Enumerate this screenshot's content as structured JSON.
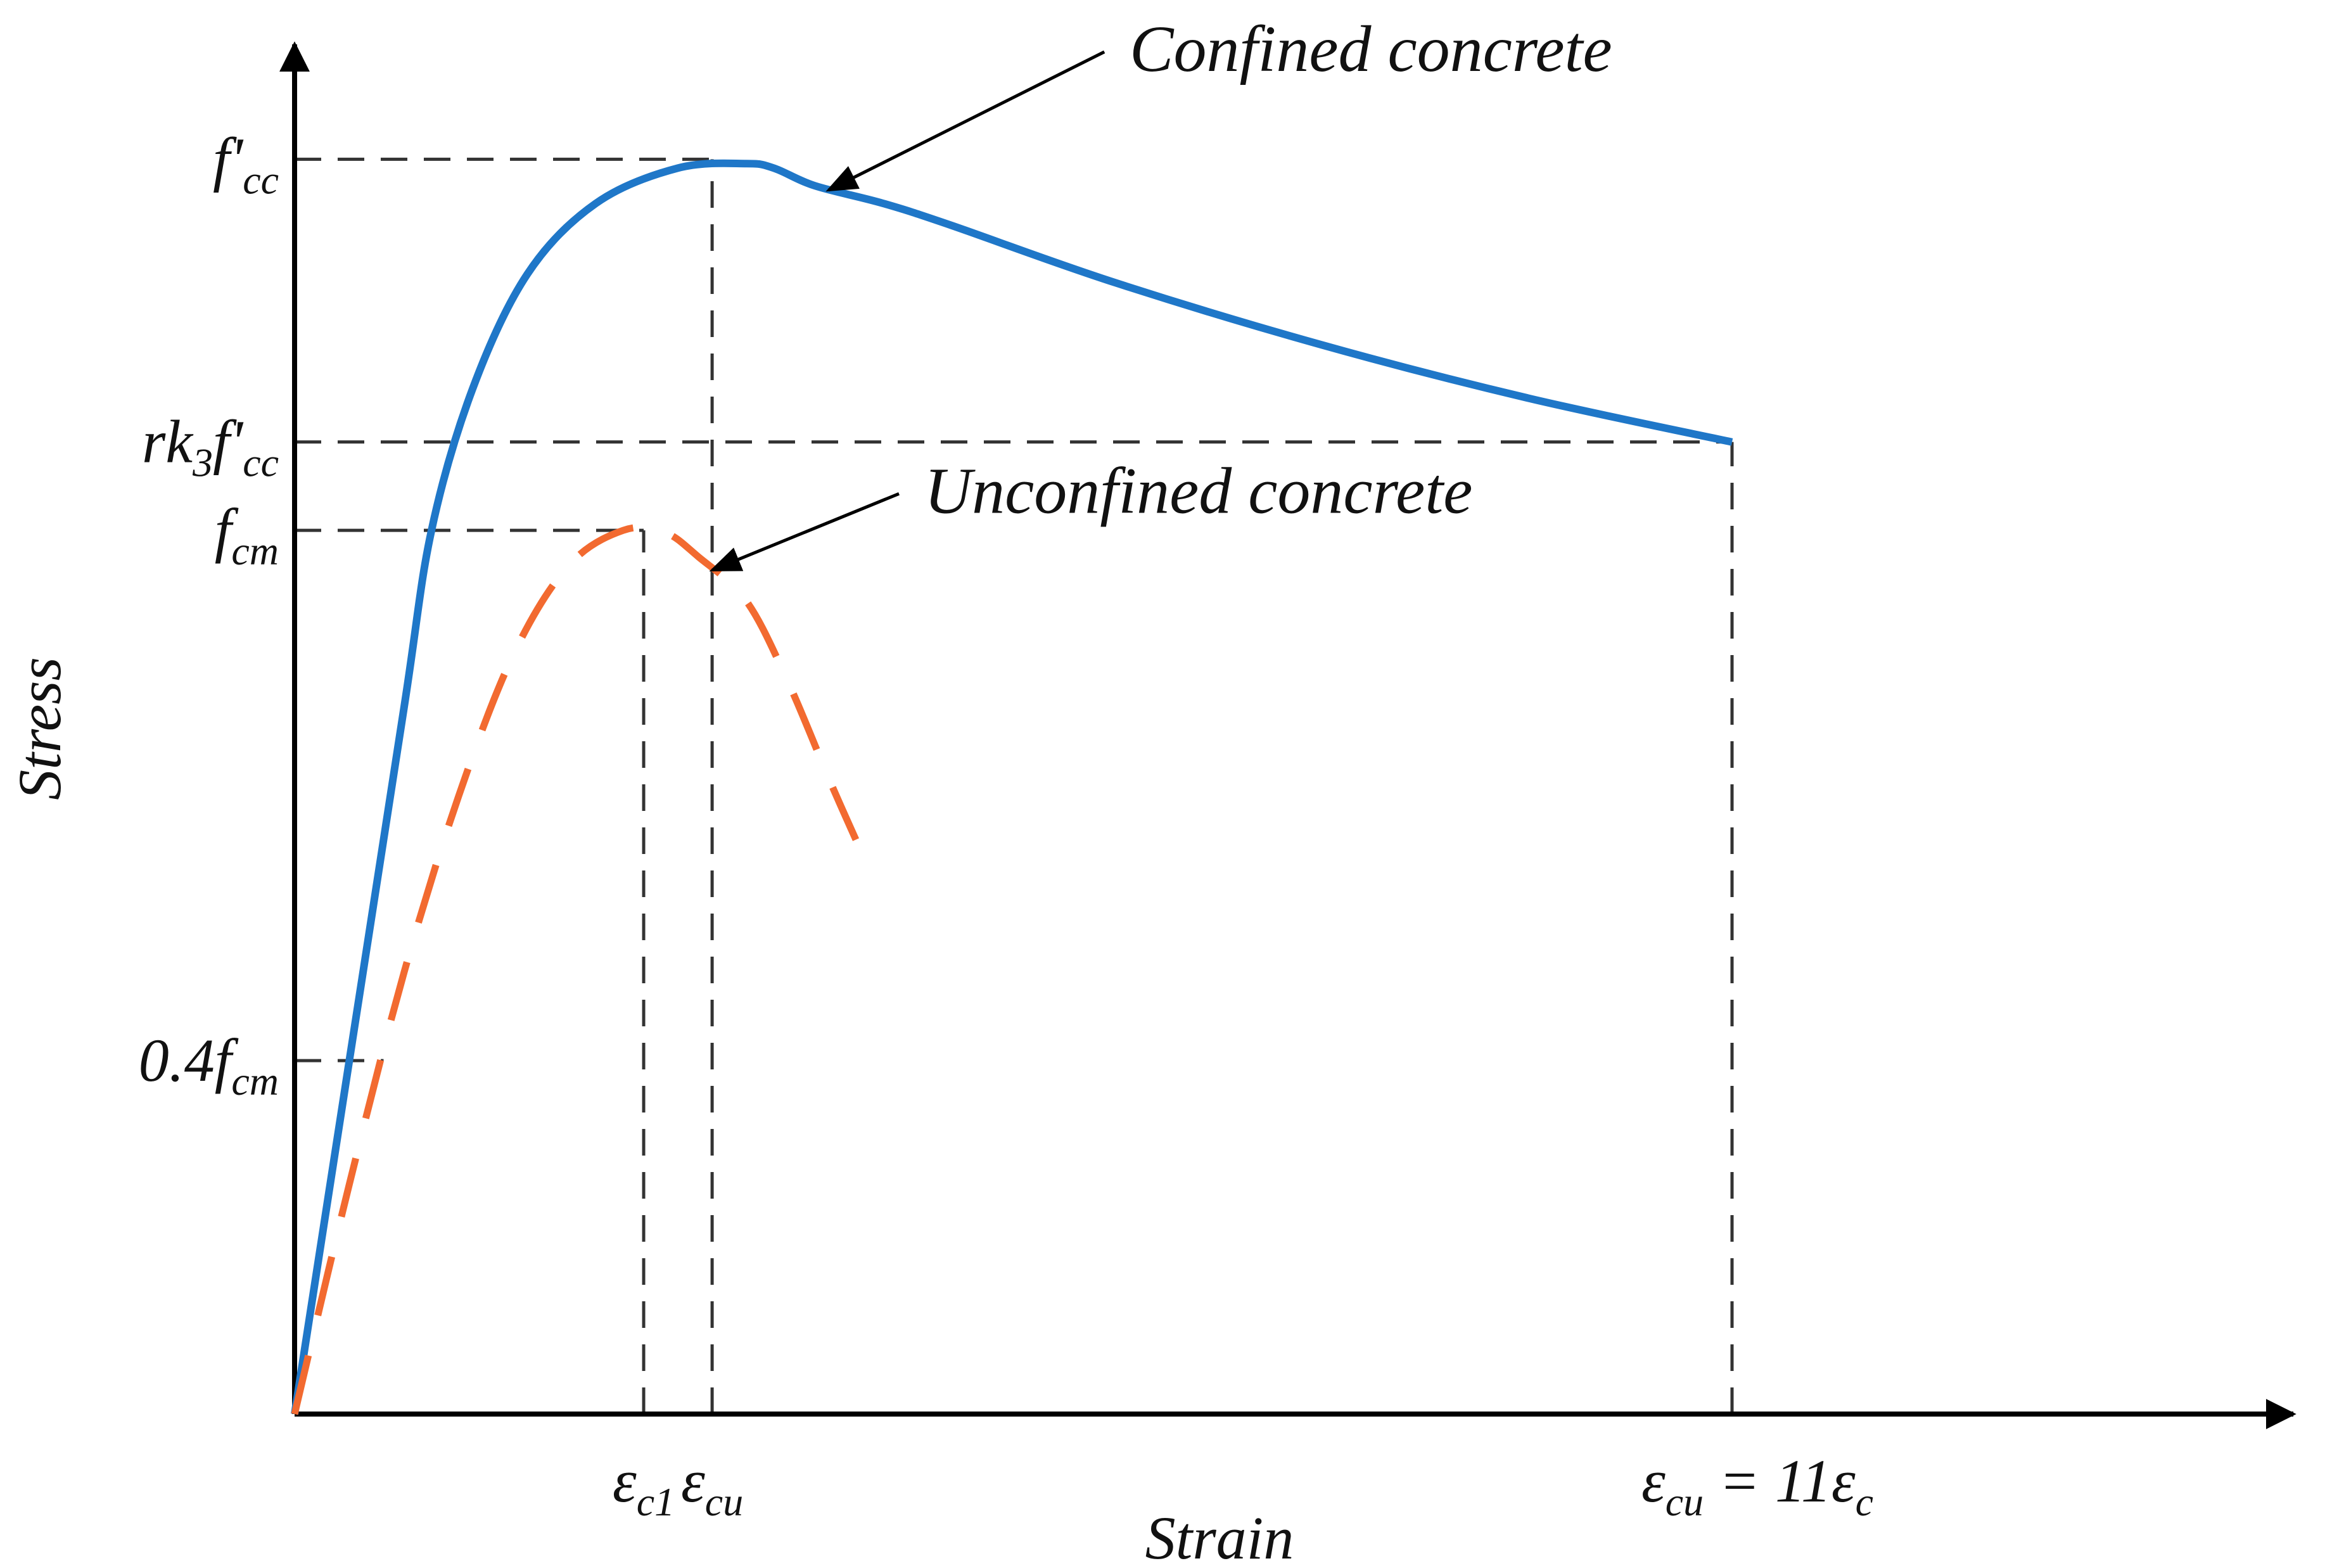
{
  "chart_data": {
    "type": "line",
    "title": "",
    "xlabel": "Strain",
    "ylabel": "Stress",
    "grid": false,
    "legend": "none",
    "xlim": [
      0,
      14.6
    ],
    "ylim": [
      0,
      1.55
    ],
    "series": [
      {
        "name": "Confined concrete",
        "style": "solid",
        "color": "#1f77c8",
        "x": [
          0,
          0.4,
          0.8,
          1.0,
          1.3,
          1.7,
          2.2,
          2.8,
          3.3,
          3.5,
          3.8,
          4.3,
          4.8,
          6.0,
          7.5,
          9.0,
          10.5
        ],
        "y": [
          0,
          0.4,
          0.8,
          1.0,
          1.16,
          1.29,
          1.37,
          1.41,
          1.415,
          1.41,
          1.39,
          1.37,
          1.345,
          1.28,
          1.21,
          1.15,
          1.1
        ]
      },
      {
        "name": "Unconfined concrete",
        "style": "dashed",
        "color": "#f26a30",
        "x": [
          0,
          0.4,
          0.8,
          1.2,
          1.6,
          2.0,
          2.4,
          2.7,
          2.95,
          3.3,
          3.6,
          3.9,
          4.1
        ],
        "y": [
          0,
          0.26,
          0.5,
          0.7,
          0.86,
          0.96,
          1.0,
          0.998,
          0.97,
          0.92,
          0.83,
          0.72,
          0.65
        ]
      }
    ],
    "y_ticks": [
      {
        "value": 1.42,
        "label": "f'",
        "sub": "cc"
      },
      {
        "value": 1.1,
        "label": "rk",
        "sub": "3",
        "label2": "f'",
        "sub2": "cc"
      },
      {
        "value": 1.0,
        "label": "f",
        "sub": "cm"
      },
      {
        "value": 0.4,
        "label": "0.4f",
        "sub": "cm"
      }
    ],
    "x_ticks": [
      {
        "value": 2.55,
        "label": "ε",
        "sub": "c1"
      },
      {
        "value": 3.05,
        "label": "ε",
        "sub": "cu"
      },
      {
        "value": 10.5,
        "label": "ε",
        "sub": "cu",
        "label2": " = 11ε",
        "sub2": "c"
      }
    ],
    "reference_lines": [
      {
        "y": 1.42,
        "x_to": 3.05
      },
      {
        "y": 1.1,
        "x_to": 10.5
      },
      {
        "y": 1.0,
        "x_to": 2.55
      },
      {
        "y": 0.4,
        "x_to": 0.65
      },
      {
        "x": 2.55,
        "y_to": 1.0
      },
      {
        "x": 3.05,
        "y_to": 1.42
      },
      {
        "x": 10.5,
        "y_to": 1.1
      }
    ],
    "annotations": [
      {
        "text": "Confined concrete",
        "point": [
          3.9,
          1.385
        ],
        "text_at": [
          6.1,
          1.52
        ]
      },
      {
        "text": "Unconfined concrete",
        "point": [
          3.05,
          0.955
        ],
        "text_at": [
          4.6,
          1.02
        ]
      }
    ]
  }
}
